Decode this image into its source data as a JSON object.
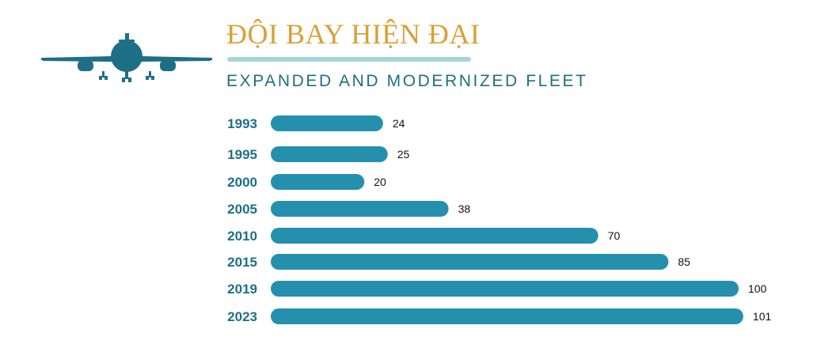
{
  "header": {
    "title": "ĐỘI BAY HIỆN ĐẠI",
    "subtitle": "EXPANDED AND MODERNIZED FLEET",
    "icon": "airplane-icon"
  },
  "colors": {
    "bar": "#2590ae",
    "year_label": "#1e6f86",
    "title": "#d9a036",
    "title_rule": "#a7d4dc",
    "plane": "#1e6f86"
  },
  "chart_data": {
    "type": "bar",
    "orientation": "horizontal",
    "title": "ĐỘI BAY HIỆN ĐẠI",
    "subtitle": "EXPANDED AND MODERNIZED FLEET",
    "categories": [
      "1993",
      "1995",
      "2000",
      "2005",
      "2010",
      "2015",
      "2019",
      "2023"
    ],
    "values": [
      24,
      25,
      20,
      38,
      70,
      85,
      100,
      101
    ],
    "xlabel": "",
    "ylabel": "",
    "data_labels": true,
    "grid": false,
    "legend": "none"
  }
}
